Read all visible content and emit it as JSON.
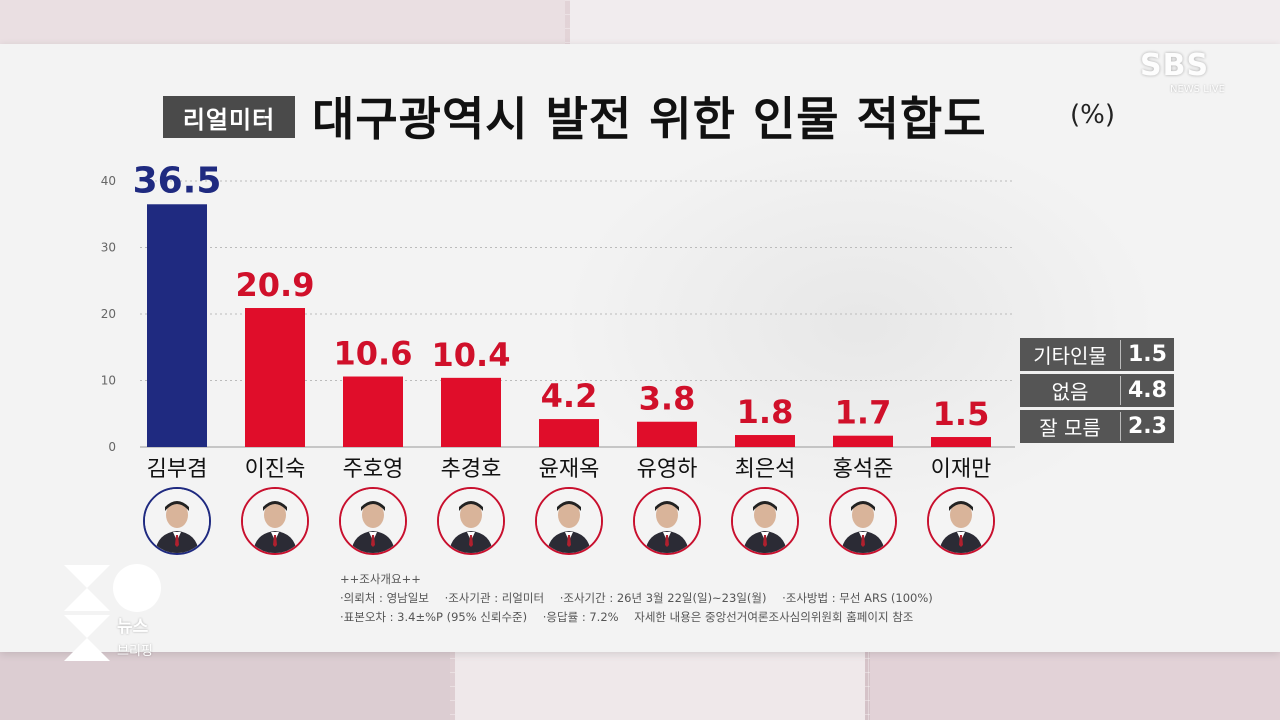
{
  "header": {
    "tag": "리얼미터",
    "title": "대구광역시 발전 위한 인물 적합도",
    "unit": "(%)"
  },
  "broadcaster": {
    "logo": "SBS",
    "sub": "NEWS LIVE"
  },
  "chart_data": {
    "type": "bar",
    "title": "대구광역시 발전 위한 인물 적합도",
    "ylabel": "(%)",
    "ylim": [
      0,
      40
    ],
    "yticks": [
      0,
      10,
      20,
      30,
      40
    ],
    "grid": true,
    "categories": [
      "김부겸",
      "이진숙",
      "주호영",
      "추경호",
      "윤재옥",
      "유영하",
      "최은석",
      "홍석준",
      "이재만"
    ],
    "values": [
      36.5,
      20.9,
      10.6,
      10.4,
      4.2,
      3.8,
      1.8,
      1.7,
      1.5
    ],
    "value_labels": [
      "36.5",
      "20.9",
      "10.6",
      "10.4",
      "4.2",
      "3.8",
      "1.8",
      "1.7",
      "1.5"
    ],
    "colors": [
      "#1f2a80",
      "#e00d2a",
      "#e00d2a",
      "#e00d2a",
      "#e00d2a",
      "#e00d2a",
      "#e00d2a",
      "#e00d2a",
      "#e00d2a"
    ],
    "label_colors": [
      "#1f2a80",
      "#d0102a",
      "#d0102a",
      "#d0102a",
      "#d0102a",
      "#d0102a",
      "#d0102a",
      "#d0102a",
      "#d0102a"
    ]
  },
  "others": [
    {
      "label": "기타인물",
      "value": "1.5"
    },
    {
      "label": "없음",
      "value": "4.8"
    },
    {
      "label": "잘 모름",
      "value": "2.3"
    }
  ],
  "survey": {
    "heading": "++조사개요++",
    "line1": [
      "·의뢰처 : 영남일보",
      "·조사기관 : 리얼미터",
      "·조사기간 : 26년 3월 22일(일)~23일(월)",
      "·조사방법 : 무선 ARS (100%)"
    ],
    "line2": [
      "·표본오차 : 3.4±%P (95% 신뢰수준)",
      "·응답률 : 7.2%",
      "자세한 내용은 중앙선거여론조사심의위원회 홈페이지 참조"
    ]
  },
  "program": {
    "line1": "뉴스",
    "line2": "브리핑"
  }
}
